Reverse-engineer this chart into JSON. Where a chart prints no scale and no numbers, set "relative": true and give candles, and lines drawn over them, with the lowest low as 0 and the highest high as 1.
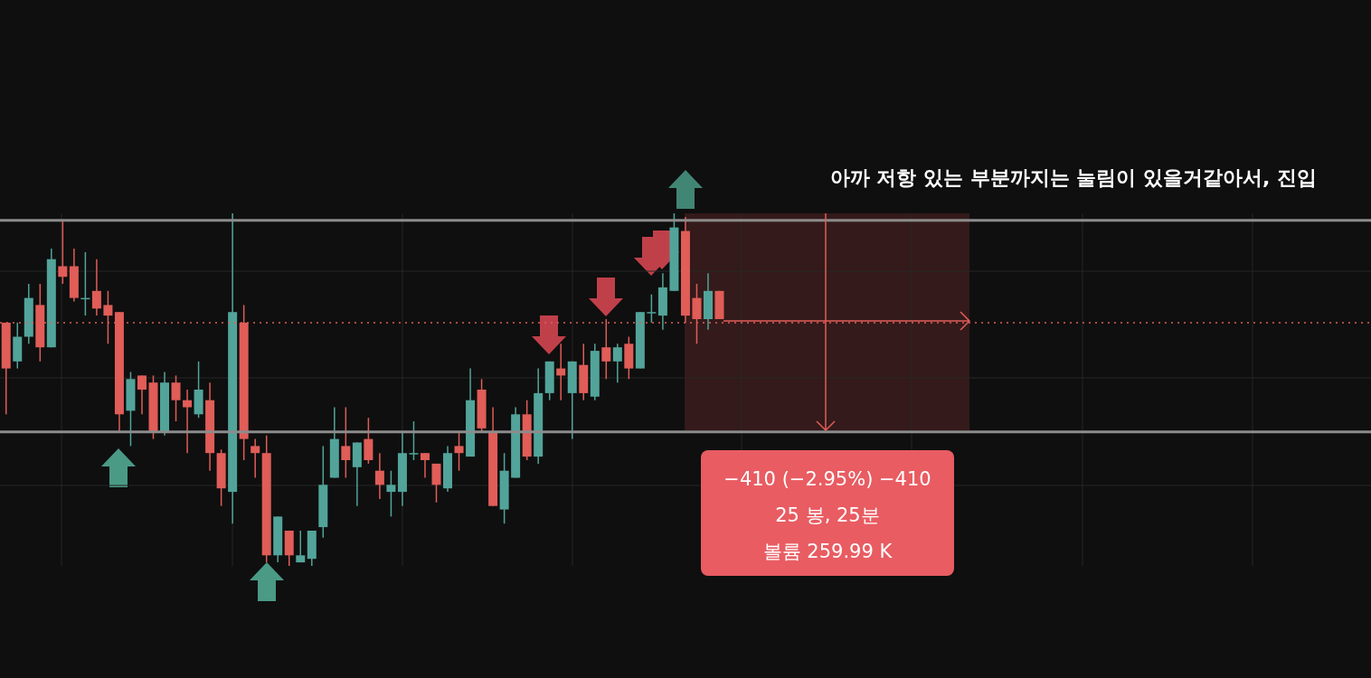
{
  "chart_data": {
    "type": "candlestick",
    "relative": true,
    "grid": true,
    "categories": [
      null,
      null,
      null,
      null,
      null,
      null,
      null,
      null,
      null,
      null,
      null,
      null,
      null,
      null,
      null,
      null,
      null,
      null,
      null,
      null,
      null,
      null,
      null,
      null,
      null,
      null,
      null,
      null,
      null,
      null,
      null,
      null,
      null,
      null,
      null,
      null,
      null,
      null,
      null,
      null,
      null,
      null,
      null,
      null,
      null,
      null,
      null,
      null,
      null,
      null,
      null,
      null,
      null,
      null,
      null,
      null,
      null,
      null,
      null,
      null,
      null,
      null,
      null,
      null
    ],
    "ohlc": [
      [
        0.69,
        0.69,
        0.43,
        0.56
      ],
      [
        0.58,
        0.69,
        0.56,
        0.65
      ],
      [
        0.65,
        0.8,
        0.63,
        0.76
      ],
      [
        0.74,
        0.8,
        0.58,
        0.62
      ],
      [
        0.62,
        0.9,
        0.62,
        0.87
      ],
      [
        0.85,
        0.98,
        0.8,
        0.82
      ],
      [
        0.85,
        0.9,
        0.75,
        0.76
      ],
      [
        0.76,
        0.89,
        0.71,
        0.76
      ],
      [
        0.78,
        0.87,
        0.71,
        0.73
      ],
      [
        0.74,
        0.78,
        0.63,
        0.71
      ],
      [
        0.72,
        0.72,
        0.38,
        0.43
      ],
      [
        0.44,
        0.55,
        0.34,
        0.53
      ],
      [
        0.54,
        0.54,
        0.43,
        0.5
      ],
      [
        0.52,
        0.54,
        0.36,
        0.38
      ],
      [
        0.38,
        0.55,
        0.37,
        0.52
      ],
      [
        0.52,
        0.54,
        0.41,
        0.47
      ],
      [
        0.47,
        0.5,
        0.32,
        0.45
      ],
      [
        0.43,
        0.58,
        0.42,
        0.5
      ],
      [
        0.47,
        0.52,
        0.27,
        0.32
      ],
      [
        0.32,
        0.33,
        0.17,
        0.22
      ],
      [
        0.21,
        1.0,
        0.12,
        0.72
      ],
      [
        0.69,
        0.74,
        0.3,
        0.36
      ],
      [
        0.34,
        0.36,
        0.25,
        0.32
      ],
      [
        0.32,
        0.37,
        0.01,
        0.03
      ],
      [
        0.03,
        0.14,
        0.01,
        0.14
      ],
      [
        0.1,
        0.1,
        0.0,
        0.03
      ],
      [
        0.01,
        0.1,
        0.01,
        0.03
      ],
      [
        0.02,
        0.1,
        0.0,
        0.1
      ],
      [
        0.11,
        0.34,
        0.08,
        0.23
      ],
      [
        0.25,
        0.45,
        0.25,
        0.36
      ],
      [
        0.34,
        0.45,
        0.25,
        0.3
      ],
      [
        0.28,
        0.35,
        0.17,
        0.35
      ],
      [
        0.36,
        0.42,
        0.29,
        0.3
      ],
      [
        0.27,
        0.32,
        0.19,
        0.23
      ],
      [
        0.21,
        0.27,
        0.14,
        0.23
      ],
      [
        0.21,
        0.38,
        0.17,
        0.32
      ],
      [
        0.32,
        0.41,
        0.3,
        0.32
      ],
      [
        0.32,
        0.32,
        0.25,
        0.3
      ],
      [
        0.29,
        0.29,
        0.18,
        0.23
      ],
      [
        0.22,
        0.34,
        0.21,
        0.32
      ],
      [
        0.34,
        0.38,
        0.27,
        0.32
      ],
      [
        0.31,
        0.56,
        0.31,
        0.47
      ],
      [
        0.5,
        0.53,
        0.38,
        0.39
      ],
      [
        0.38,
        0.45,
        0.17,
        0.17
      ],
      [
        0.16,
        0.32,
        0.12,
        0.27
      ],
      [
        0.25,
        0.45,
        0.25,
        0.43
      ],
      [
        0.43,
        0.47,
        0.3,
        0.31
      ],
      [
        0.31,
        0.56,
        0.29,
        0.49
      ],
      [
        0.49,
        0.58,
        0.47,
        0.58
      ],
      [
        0.56,
        0.63,
        0.47,
        0.54
      ],
      [
        0.49,
        0.58,
        0.36,
        0.58
      ],
      [
        0.57,
        0.63,
        0.47,
        0.49
      ],
      [
        0.48,
        0.63,
        0.47,
        0.61
      ],
      [
        0.62,
        0.7,
        0.53,
        0.58
      ],
      [
        0.58,
        0.63,
        0.52,
        0.62
      ],
      [
        0.63,
        0.65,
        0.53,
        0.56
      ],
      [
        0.56,
        0.72,
        0.56,
        0.72
      ],
      [
        0.72,
        0.77,
        0.69,
        0.72
      ],
      [
        0.71,
        0.83,
        0.67,
        0.79
      ],
      [
        0.78,
        1.0,
        0.78,
        0.96
      ],
      [
        0.95,
        0.99,
        0.69,
        0.71
      ],
      [
        0.76,
        0.8,
        0.63,
        0.7
      ],
      [
        0.7,
        0.83,
        0.67,
        0.78
      ],
      [
        0.78,
        0.78,
        0.7,
        0.7
      ]
    ],
    "colors": [
      "#e05d58",
      "#52a49a",
      "#52a49a",
      "#e05d58",
      "#52a49a",
      "#e05d58",
      "#e05d58",
      "#52a49a",
      "#e05d58",
      "#e05d58",
      "#e05d58",
      "#52a49a",
      "#e05d58",
      "#e05d58",
      "#52a49a",
      "#e05d58",
      "#e05d58",
      "#52a49a",
      "#e05d58",
      "#e05d58",
      "#52a49a",
      "#e05d58",
      "#e05d58",
      "#e05d58",
      "#52a49a",
      "#e05d58",
      "#52a49a",
      "#52a49a",
      "#52a49a",
      "#52a49a",
      "#e05d58",
      "#52a49a",
      "#e05d58",
      "#e05d58",
      "#52a49a",
      "#52a49a",
      "#52a49a",
      "#e05d58",
      "#e05d58",
      "#52a49a",
      "#e05d58",
      "#52a49a",
      "#e05d58",
      "#e05d58",
      "#52a49a",
      "#52a49a",
      "#e05d58",
      "#52a49a",
      "#52a49a",
      "#e05d58",
      "#52a49a",
      "#e05d58",
      "#52a49a",
      "#e05d58",
      "#52a49a",
      "#e05d58",
      "#52a49a",
      "#52a49a",
      "#52a49a",
      "#52a49a",
      "#e05d58",
      "#e05d58",
      "#52a49a",
      "#e05d58"
    ],
    "ref_lines": [
      {
        "axis": "y",
        "value": 0.98,
        "color": "#8c8c8c",
        "line_style": "solid"
      },
      {
        "axis": "y",
        "value": 0.38,
        "color": "#8c8c8c",
        "line_style": "solid"
      },
      {
        "axis": "y",
        "value": 0.69,
        "color": "#e05d58",
        "line_style": "dotted"
      }
    ],
    "annotations": [
      "아까 저항 있는 부분까지는 눌림이 있을거같아서, 진입",
      "−410 (−2.95%) −410",
      "25 봉, 25분",
      "볼륨 259.99 K"
    ]
  }
}
